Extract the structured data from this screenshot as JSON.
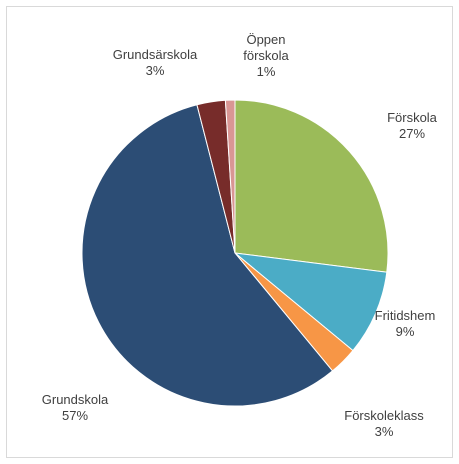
{
  "chart_data": {
    "type": "pie",
    "categories": [
      "Förskola",
      "Fritidshem",
      "Förskoleklass",
      "Grundskola",
      "Grundsärskola",
      "Öppen förskola"
    ],
    "values": [
      27,
      9,
      3,
      57,
      3,
      1
    ],
    "value_labels": [
      "27%",
      "9%",
      "3%",
      "57%",
      "3%",
      "1%"
    ],
    "colors": [
      "#9bbb59",
      "#4bacc6",
      "#f79646",
      "#2c4d75",
      "#772c2a",
      "#d99694"
    ]
  }
}
